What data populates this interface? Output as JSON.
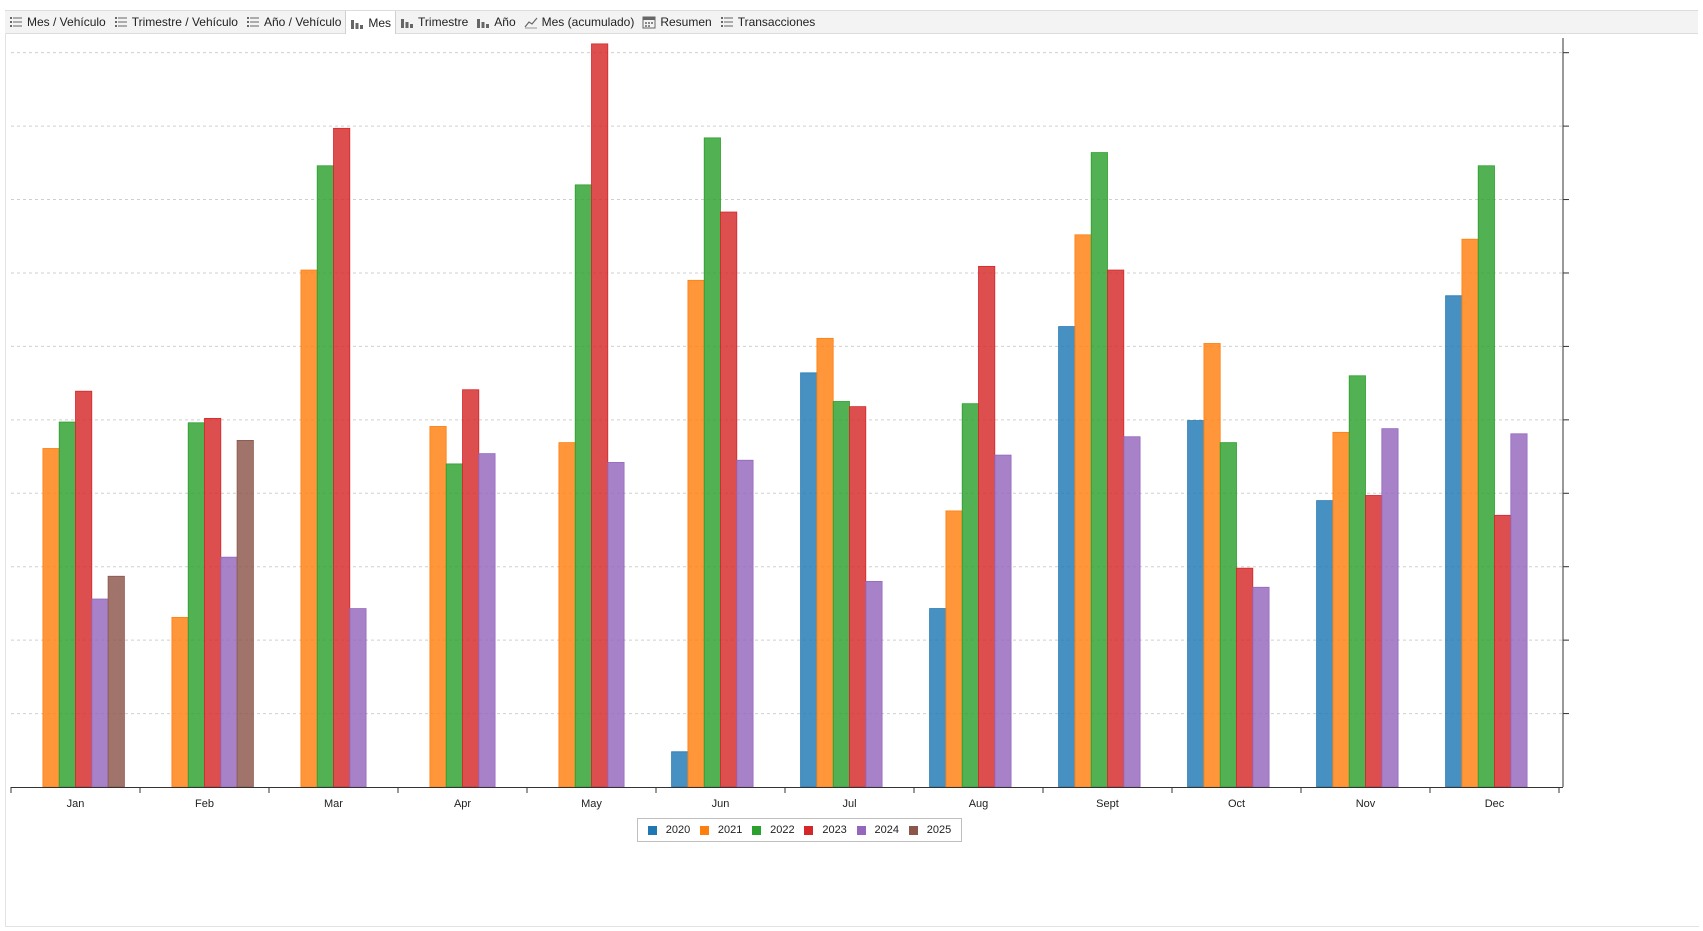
{
  "tabs": [
    {
      "label": "Mes / Vehículo",
      "icon": "list-icon",
      "active": false
    },
    {
      "label": "Trimestre / Vehículo",
      "icon": "list-icon",
      "active": false
    },
    {
      "label": "Año / Vehículo",
      "icon": "list-icon",
      "active": false
    },
    {
      "label": "Mes",
      "icon": "bar-chart-icon",
      "active": true
    },
    {
      "label": "Trimestre",
      "icon": "bar-chart-icon",
      "active": false
    },
    {
      "label": "Año",
      "icon": "bar-chart-icon",
      "active": false
    },
    {
      "label": "Mes (acumulado)",
      "icon": "line-chart-icon",
      "active": false
    },
    {
      "label": "Resumen",
      "icon": "calendar-icon",
      "active": false
    },
    {
      "label": "Transacciones",
      "icon": "list-icon",
      "active": false
    }
  ],
  "chart_data": {
    "type": "bar",
    "categories": [
      "Jan",
      "Feb",
      "Mar",
      "Apr",
      "May",
      "Jun",
      "Jul",
      "Aug",
      "Sept",
      "Oct",
      "Nov",
      "Dec"
    ],
    "ylim": [
      0,
      10.2
    ],
    "grid": true,
    "legend_position": "bottom-center",
    "series": [
      {
        "name": "2020",
        "color": "#1f77b4",
        "values": [
          null,
          null,
          null,
          null,
          null,
          0.48,
          5.64,
          2.43,
          6.27,
          4.99,
          3.9,
          6.69
        ]
      },
      {
        "name": "2021",
        "color": "#ff7f0e",
        "values": [
          4.61,
          2.31,
          7.04,
          4.91,
          4.69,
          6.9,
          6.11,
          3.76,
          7.52,
          6.04,
          4.83,
          7.46
        ]
      },
      {
        "name": "2022",
        "color": "#2ca02c",
        "values": [
          4.97,
          4.96,
          8.46,
          4.4,
          8.2,
          8.84,
          5.25,
          5.22,
          8.64,
          4.69,
          5.6,
          8.46
        ]
      },
      {
        "name": "2023",
        "color": "#d62728",
        "values": [
          5.39,
          5.02,
          8.97,
          5.41,
          10.12,
          7.83,
          5.18,
          7.09,
          7.04,
          2.98,
          3.97,
          3.7
        ]
      },
      {
        "name": "2024",
        "color": "#9467bd",
        "values": [
          2.56,
          3.13,
          2.43,
          4.54,
          4.42,
          4.45,
          2.8,
          4.52,
          4.77,
          2.72,
          4.88,
          4.81
        ]
      },
      {
        "name": "2025",
        "color": "#8c564b",
        "values": [
          2.87,
          4.72,
          null,
          null,
          null,
          null,
          null,
          null,
          null,
          null,
          null,
          null
        ]
      }
    ]
  }
}
